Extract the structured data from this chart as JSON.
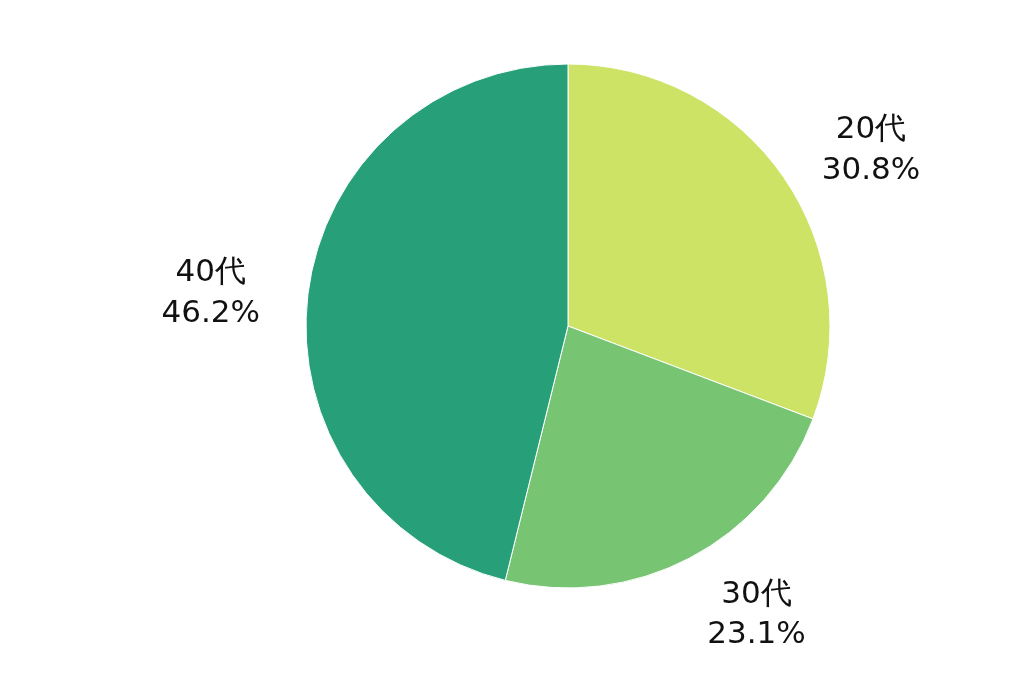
{
  "chart_data": {
    "type": "pie",
    "categories": [
      "20代",
      "30代",
      "40代"
    ],
    "values": [
      30.8,
      23.1,
      46.2
    ],
    "colors": [
      "#cde366",
      "#77c572",
      "#27a07a"
    ],
    "value_labels": [
      "30.8%",
      "23.1%",
      "46.2%"
    ]
  }
}
